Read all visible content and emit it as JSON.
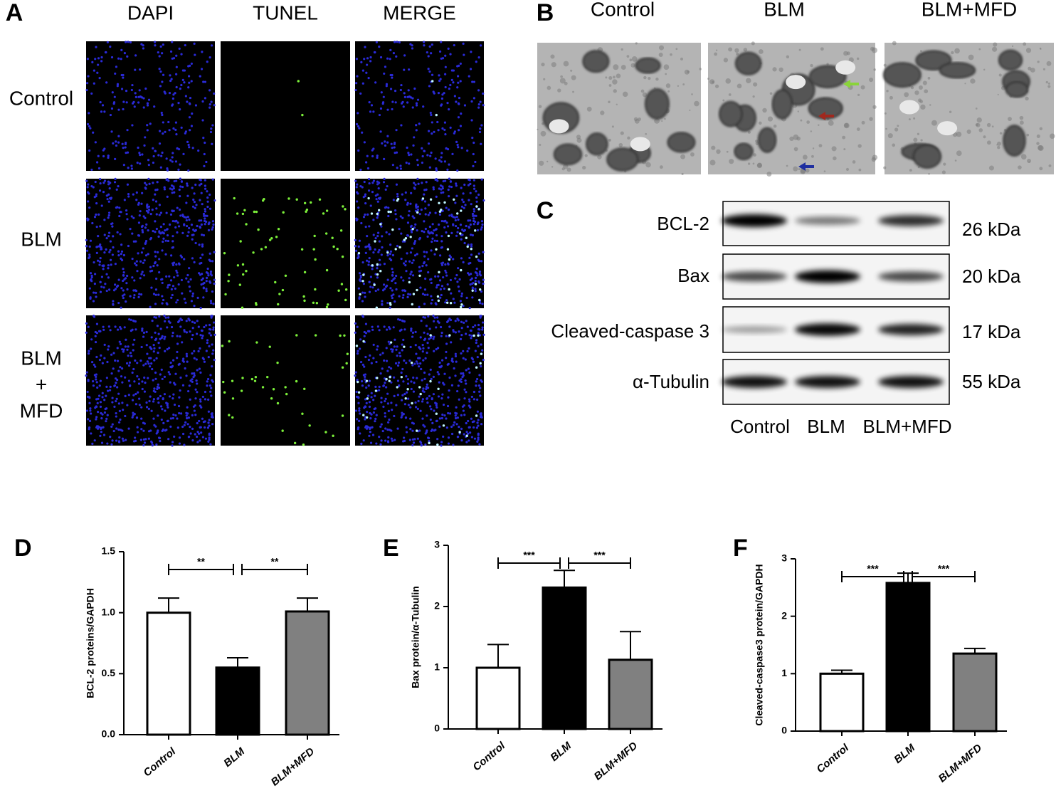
{
  "panel_a": {
    "label": "A",
    "columns": [
      "DAPI",
      "TUNEL",
      "MERGE"
    ],
    "rows": [
      [
        "Control"
      ],
      [
        "BLM"
      ],
      [
        "BLM",
        "+",
        "MFD"
      ]
    ]
  },
  "panel_b": {
    "label": "B",
    "columns": [
      "Control",
      "BLM",
      "BLM+MFD"
    ]
  },
  "panel_c": {
    "label": "C",
    "bands": [
      {
        "name": "BCL-2",
        "size": "26 kDa"
      },
      {
        "name": "Bax",
        "size": "20 kDa"
      },
      {
        "name": "Cleaved-caspase 3",
        "size": "17 kDa"
      },
      {
        "name": "α-Tubulin",
        "size": "55 kDa"
      }
    ],
    "lanes": [
      "Control",
      "BLM",
      "BLM+MFD"
    ]
  },
  "chart_data": [
    {
      "type": "bar",
      "panel_label": "D",
      "y_label": "BCL-2 proteins/GAPDH",
      "categories": [
        "Control",
        "BLM",
        "BLM+MFD"
      ],
      "values": [
        1.0,
        0.55,
        1.01
      ],
      "errors": [
        0.12,
        0.08,
        0.11
      ],
      "colors": [
        "#ffffff",
        "#000000",
        "#808080"
      ],
      "ylim": [
        0,
        1.5
      ],
      "yticks": [
        {
          "value": 0,
          "label": "0.0"
        },
        0.5,
        {
          "value": 1,
          "label": "1.0"
        },
        1.5
      ],
      "significance": [
        "**",
        "**"
      ]
    },
    {
      "type": "bar",
      "panel_label": "E",
      "y_label": "Bax protein/α-Tubulin",
      "categories": [
        "Control",
        "BLM",
        "BLM+MFD"
      ],
      "values": [
        1.0,
        2.31,
        1.13
      ],
      "errors": [
        0.38,
        0.28,
        0.46
      ],
      "colors": [
        "#ffffff",
        "#000000",
        "#808080"
      ],
      "ylim": [
        0,
        3
      ],
      "yticks": [
        0,
        1,
        2,
        3
      ],
      "significance": [
        "***",
        "***"
      ]
    },
    {
      "type": "bar",
      "panel_label": "F",
      "y_label": "Cleaved-caspase3 protein/GAPDH",
      "categories": [
        "Control",
        "BLM",
        "BLM+MFD"
      ],
      "values": [
        1.0,
        2.58,
        1.35
      ],
      "errors": [
        0.06,
        0.17,
        0.09
      ],
      "colors": [
        "#ffffff",
        "#000000",
        "#808080"
      ],
      "ylim": [
        0,
        3
      ],
      "yticks": [
        0,
        1,
        2,
        3
      ],
      "significance": [
        "***",
        "***"
      ]
    }
  ]
}
